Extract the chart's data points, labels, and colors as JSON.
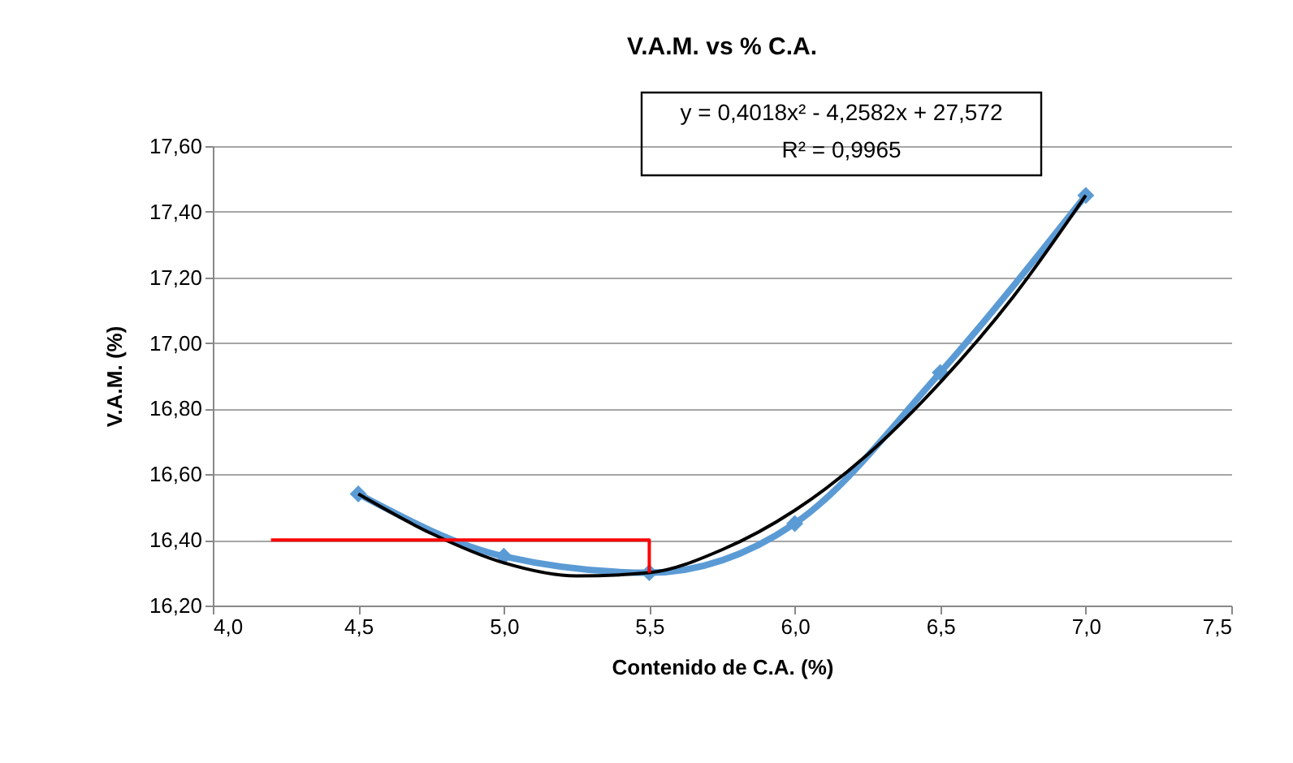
{
  "chart_data": {
    "type": "line",
    "title": "V.A.M. vs % C.A.",
    "xlabel": "Contenido de C.A. (%)",
    "ylabel": "V.A.M. (%)",
    "series": [
      {
        "color": "#5b9bd5",
        "marker": "diamond",
        "x": [
          4.5,
          5.0,
          5.5,
          6.0,
          6.5,
          7.0
        ],
        "values": [
          16.54,
          16.35,
          16.3,
          16.45,
          16.91,
          17.45
        ]
      },
      {
        "color": "#000000",
        "marker": "none",
        "x": [
          4.5,
          4.75,
          5.0,
          5.25,
          5.5,
          5.75,
          6.0,
          6.25,
          6.5,
          6.75,
          7.0
        ],
        "values": [
          16.54,
          16.42,
          16.33,
          16.29,
          16.3,
          16.37,
          16.49,
          16.66,
          16.88,
          17.14,
          17.45
        ]
      },
      {
        "color": "#ff0000",
        "marker": "none",
        "x": [
          4.2,
          5.5,
          5.5
        ],
        "values": [
          16.4,
          16.4,
          16.3
        ]
      }
    ],
    "xlim": [
      4.0,
      7.5
    ],
    "xticks": [
      {
        "value": 4.0,
        "label": "4,0"
      },
      {
        "value": 4.5,
        "label": "4,5"
      },
      {
        "value": 5.0,
        "label": "5,0"
      },
      {
        "value": 5.5,
        "label": "5,5"
      },
      {
        "value": 6.0,
        "label": "6,0"
      },
      {
        "value": 6.5,
        "label": "6,5"
      },
      {
        "value": 7.0,
        "label": "7,0"
      },
      {
        "value": 7.5,
        "label": "7,5"
      }
    ],
    "ylim": [
      16.2,
      17.6
    ],
    "yticks": [
      {
        "value": 16.2,
        "label": "16,20"
      },
      {
        "value": 16.4,
        "label": "16,40"
      },
      {
        "value": 16.6,
        "label": "16,60"
      },
      {
        "value": 16.8,
        "label": "16,80"
      },
      {
        "value": 17.0,
        "label": "17,00"
      },
      {
        "value": 17.2,
        "label": "17,20"
      },
      {
        "value": 17.4,
        "label": "17,40"
      },
      {
        "value": 17.6,
        "label": "17,60"
      }
    ],
    "grid": "y",
    "annotations": [
      "y = 0,4018x² - 4,2582x + 27,572",
      "R² = 0,9965"
    ]
  }
}
